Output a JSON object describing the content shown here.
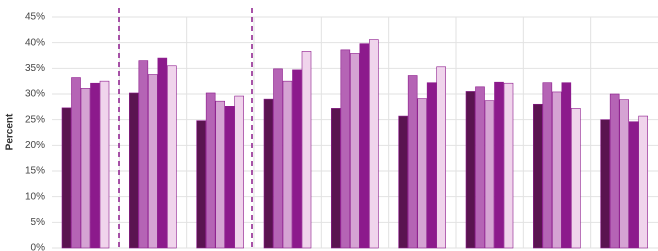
{
  "chart_data": {
    "type": "bar",
    "y_label": "Percent",
    "categories": [
      null,
      null,
      null,
      null,
      null,
      null,
      null,
      null,
      null
    ],
    "series": [
      {
        "color": "#5a1450",
        "values": [
          27.3,
          30.2,
          24.8,
          29,
          27.2,
          25.7,
          30.5,
          28,
          25
        ]
      },
      {
        "color": "#b564b5",
        "values": [
          33.2,
          36.5,
          30.2,
          34.9,
          38.6,
          33.6,
          31.4,
          32.2,
          30
        ]
      },
      {
        "color": "#d5a3d3",
        "values": [
          31.1,
          33.8,
          28.6,
          32.5,
          37.9,
          29.1,
          28.7,
          30.4,
          28.9
        ]
      },
      {
        "color": "#8c1a8c",
        "values": [
          32.1,
          37,
          27.6,
          34.7,
          39.8,
          32.2,
          32.3,
          32.2,
          24.6
        ]
      },
      {
        "color": "#f0d4ec",
        "values": [
          32.5,
          35.5,
          29.6,
          38.3,
          40.6,
          35.3,
          32.1,
          27.2,
          25.7
        ]
      }
    ],
    "ylim": [
      0,
      45
    ],
    "yticks": [
      {
        "value": 0,
        "label": "0%"
      },
      {
        "value": 5,
        "label": "5%"
      },
      {
        "value": 10,
        "label": "10%"
      },
      {
        "value": 15,
        "label": "15%"
      },
      {
        "value": 20,
        "label": "20%"
      },
      {
        "value": 25,
        "label": "25%"
      },
      {
        "value": 30,
        "label": "30%"
      },
      {
        "value": 35,
        "label": "35%"
      },
      {
        "value": 40,
        "label": "40%"
      },
      {
        "value": 45,
        "label": "45%"
      }
    ],
    "grid": true
  }
}
